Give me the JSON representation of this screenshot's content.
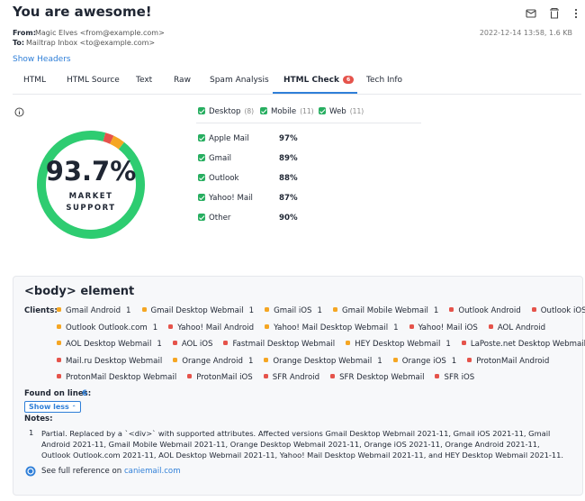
{
  "header": {
    "title": "You are awesome!",
    "from_label": "From:",
    "from": "Magic Elves <from@example.com>",
    "to_label": "To:",
    "to": "Mailtrap Inbox <to@example.com>",
    "date": "2022-12-14 13:58, 1.6 KB",
    "show_headers": "Show Headers"
  },
  "tabs": [
    {
      "label": "HTML"
    },
    {
      "label": "HTML Source"
    },
    {
      "label": "Text"
    },
    {
      "label": "Raw"
    },
    {
      "label": "Spam Analysis"
    },
    {
      "label": "HTML Check",
      "badge": "6",
      "active": true
    },
    {
      "label": "Tech Info"
    }
  ],
  "summary": {
    "percent": "93.7%",
    "label_1": "MARKET",
    "label_2": "SUPPORT",
    "ring": [
      {
        "value": 93.7,
        "color": "#2ecc71"
      },
      {
        "value": 2.6,
        "color": "#e5534b"
      },
      {
        "value": 3.7,
        "color": "#f5a623"
      }
    ]
  },
  "filters": [
    {
      "label": "Desktop",
      "count": "(8)"
    },
    {
      "label": "Mobile",
      "count": "(11)"
    },
    {
      "label": "Web",
      "count": "(11)"
    }
  ],
  "client_support": [
    {
      "name": "Apple Mail",
      "percent": "97%"
    },
    {
      "name": "Gmail",
      "percent": "89%"
    },
    {
      "name": "Outlook",
      "percent": "88%"
    },
    {
      "name": "Yahoo! Mail",
      "percent": "87%"
    },
    {
      "name": "Other",
      "percent": "90%"
    }
  ],
  "section": {
    "title": "<body> element",
    "clients_label": "Clients:",
    "client_rows": [
      [
        {
          "name": "Gmail Android",
          "color": "#f5a623",
          "note": "1"
        },
        {
          "name": "Gmail Desktop Webmail",
          "color": "#f5a623",
          "note": "1"
        },
        {
          "name": "Gmail iOS",
          "color": "#f5a623",
          "note": "1"
        },
        {
          "name": "Gmail Mobile Webmail",
          "color": "#f5a623",
          "note": "1"
        },
        {
          "name": "Outlook Android",
          "color": "#e5534b"
        },
        {
          "name": "Outlook iOS",
          "color": "#e5534b"
        }
      ],
      [
        {
          "name": "Outlook Outlook.com",
          "color": "#f5a623",
          "note": "1"
        },
        {
          "name": "Yahoo! Mail Android",
          "color": "#e5534b"
        },
        {
          "name": "Yahoo! Mail Desktop Webmail",
          "color": "#f5a623",
          "note": "1"
        },
        {
          "name": "Yahoo! Mail iOS",
          "color": "#e5534b"
        },
        {
          "name": "AOL Android",
          "color": "#e5534b"
        }
      ],
      [
        {
          "name": "AOL Desktop Webmail",
          "color": "#f5a623",
          "note": "1"
        },
        {
          "name": "AOL iOS",
          "color": "#e5534b"
        },
        {
          "name": "Fastmail Desktop Webmail",
          "color": "#e5534b"
        },
        {
          "name": "HEY Desktop Webmail",
          "color": "#f5a623",
          "note": "1"
        },
        {
          "name": "LaPoste.net Desktop Webmail",
          "color": "#e5534b"
        }
      ],
      [
        {
          "name": "Mail.ru Desktop Webmail",
          "color": "#e5534b"
        },
        {
          "name": "Orange Android",
          "color": "#f5a623",
          "note": "1"
        },
        {
          "name": "Orange Desktop Webmail",
          "color": "#f5a623",
          "note": "1"
        },
        {
          "name": "Orange iOS",
          "color": "#f5a623",
          "note": "1"
        },
        {
          "name": "ProtonMail Android",
          "color": "#e5534b"
        }
      ],
      [
        {
          "name": "ProtonMail Desktop Webmail",
          "color": "#e5534b"
        },
        {
          "name": "ProtonMail iOS",
          "color": "#e5534b"
        },
        {
          "name": "SFR Android",
          "color": "#e5534b"
        },
        {
          "name": "SFR Desktop Webmail",
          "color": "#e5534b"
        },
        {
          "name": "SFR iOS",
          "color": "#e5534b"
        }
      ]
    ],
    "found_label": "Found on lines:",
    "found_lines": "6",
    "show_less": "Show less",
    "notes_label": "Notes:",
    "notes": [
      {
        "number": "1",
        "text": "Partial. Replaced by a `<div>` with supported attributes. Affected versions Gmail Desktop Webmail 2021-11, Gmail iOS 2021-11, Gmail Android 2021-11, Gmail Mobile Webmail 2021-11, Orange Desktop Webmail 2021-11, Orange iOS 2021-11, Orange Android 2021-11, Outlook Outlook.com 2021-11, AOL Desktop Webmail 2021-11, Yahoo! Mail Desktop Webmail 2021-11, and HEY Desktop Webmail 2021-11."
      }
    ],
    "reference_text": "See full reference on",
    "reference_link": "caniemail.com"
  }
}
